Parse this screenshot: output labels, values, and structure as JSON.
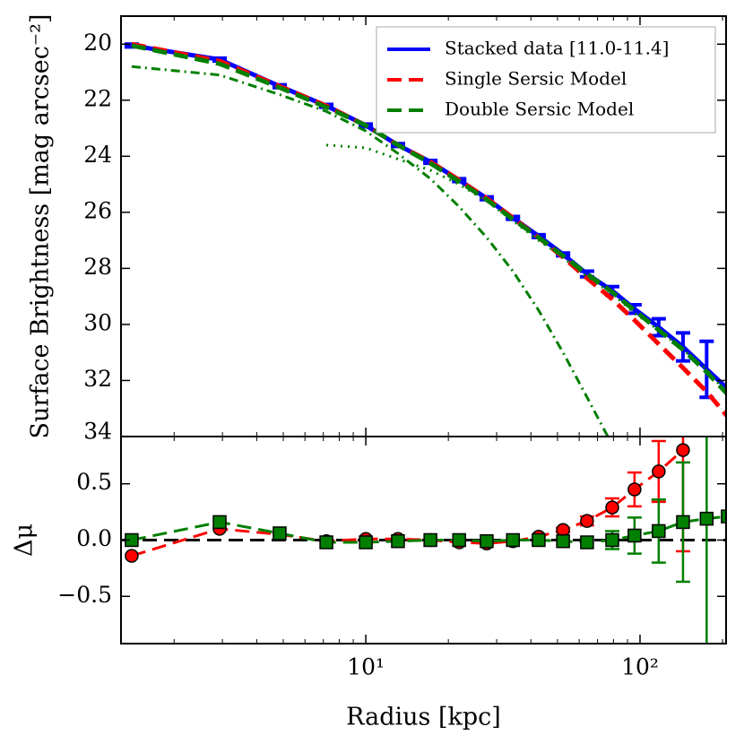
{
  "chart_data": [
    {
      "type": "line",
      "ylabel": "Surface Brightness [mag arcsec⁻²]",
      "xscale": "log",
      "xlim": [
        1.28,
        206
      ],
      "xticks": [
        {
          "value": 10,
          "label": "10¹"
        },
        {
          "value": 100,
          "label": "10²"
        }
      ],
      "xminorticks": [
        2,
        3,
        4,
        5,
        6,
        7,
        8,
        9,
        20,
        30,
        40,
        50,
        60,
        70,
        80,
        90,
        200
      ],
      "ylim": [
        34,
        19
      ],
      "yticks": [
        20,
        22,
        24,
        26,
        28,
        30,
        32,
        34
      ],
      "legend": "upper right",
      "x": [
        1.4,
        2.93,
        4.85,
        7.18,
        10,
        13.1,
        17.2,
        21.9,
        27.6,
        34.4,
        42.7,
        52.4,
        64.1,
        79.2,
        95.5,
        117,
        143.5,
        175,
        209
      ],
      "series": [
        {
          "name": "Stacked data [11.0-11.4]",
          "color": "#0000ff",
          "style": "solid",
          "width": 5,
          "values": [
            20.05,
            20.55,
            21.5,
            22.2,
            22.9,
            23.6,
            24.2,
            24.85,
            25.5,
            26.2,
            26.85,
            27.5,
            28.2,
            28.8,
            29.45,
            30.1,
            30.8,
            31.6,
            32.3
          ],
          "errors": [
            0.05,
            0.05,
            0.05,
            0.05,
            0.05,
            0.05,
            0.05,
            0.05,
            0.05,
            0.05,
            0.05,
            0.05,
            0.1,
            0.15,
            0.15,
            0.3,
            0.5,
            1.0,
            null
          ]
        },
        {
          "name": "Single Sersic Model",
          "color": "#ff0000",
          "style": "dashed",
          "width": 5,
          "values": [
            20.0,
            20.6,
            21.5,
            22.2,
            22.9,
            23.6,
            24.2,
            24.85,
            25.5,
            26.2,
            26.9,
            27.6,
            28.35,
            29.1,
            29.85,
            30.7,
            31.55,
            32.4,
            33.3
          ]
        },
        {
          "name": "Double Sersic Model",
          "color": "#007f00",
          "style": "dashed",
          "width": 5,
          "values": [
            20.05,
            20.7,
            21.55,
            22.25,
            22.9,
            23.6,
            24.25,
            24.9,
            25.55,
            26.25,
            26.9,
            27.55,
            28.2,
            28.85,
            29.5,
            30.2,
            30.9,
            31.7,
            32.5
          ]
        },
        {
          "color": "#007f00",
          "style": "dashdot",
          "width": 3,
          "values": [
            20.8,
            21.1,
            21.8,
            22.4,
            23.1,
            23.9,
            24.8,
            25.8,
            26.9,
            28.1,
            29.5,
            31.0,
            32.6,
            34.3,
            null,
            null,
            null,
            null,
            null
          ]
        },
        {
          "color": "#007f00",
          "style": "dotted",
          "width": 3,
          "values": [
            null,
            null,
            null,
            23.6,
            23.7,
            24.1,
            24.5,
            25.0,
            25.6,
            26.3,
            27.0,
            27.6,
            28.3,
            28.9,
            29.6,
            30.2,
            30.9,
            31.6,
            32.5
          ]
        }
      ]
    },
    {
      "type": "line",
      "ylabel": "Δμ",
      "xlabel": "Radius [kpc]",
      "xscale": "log",
      "xlim": [
        1.28,
        206
      ],
      "xticks": [
        {
          "value": 10,
          "label": "10¹"
        },
        {
          "value": 100,
          "label": "10²"
        }
      ],
      "xminorticks": [
        2,
        3,
        4,
        5,
        6,
        7,
        8,
        9,
        20,
        30,
        40,
        50,
        60,
        70,
        80,
        90,
        200
      ],
      "ylim": [
        -0.92,
        0.92
      ],
      "yticks": [
        {
          "value": -0.5,
          "label": "−0.5"
        },
        {
          "value": 0,
          "label": "0.0"
        },
        0.5
      ],
      "reference_line": 0,
      "x": [
        1.4,
        2.93,
        4.85,
        7.18,
        10,
        13.1,
        17.2,
        21.9,
        27.6,
        34.4,
        42.7,
        52.4,
        64.1,
        79.2,
        95.5,
        117,
        143.5,
        175,
        209
      ],
      "series": [
        {
          "color": "#ff0000",
          "style": "dashed",
          "width": 3,
          "marker": "circle",
          "values": [
            -0.14,
            0.1,
            0.05,
            -0.01,
            0.01,
            0.01,
            0.0,
            -0.02,
            -0.03,
            -0.01,
            0.03,
            0.09,
            0.17,
            0.29,
            0.45,
            0.61,
            0.8,
            null,
            null
          ],
          "errors": [
            null,
            null,
            null,
            null,
            null,
            null,
            null,
            null,
            null,
            null,
            null,
            0.02,
            0.04,
            0.08,
            0.15,
            0.27,
            0.9,
            null,
            null
          ]
        },
        {
          "color": "#007f00",
          "style": "dashed",
          "width": 3,
          "marker": "square",
          "values": [
            0.0,
            0.16,
            0.06,
            -0.02,
            -0.02,
            -0.01,
            0.0,
            0.0,
            -0.01,
            0.0,
            0.0,
            -0.01,
            -0.02,
            0.0,
            0.04,
            0.08,
            0.16,
            0.19,
            0.21
          ],
          "errors": [
            null,
            null,
            null,
            null,
            null,
            null,
            null,
            null,
            null,
            null,
            null,
            null,
            null,
            0.08,
            0.16,
            0.28,
            0.53,
            1.5,
            null
          ]
        }
      ]
    }
  ]
}
